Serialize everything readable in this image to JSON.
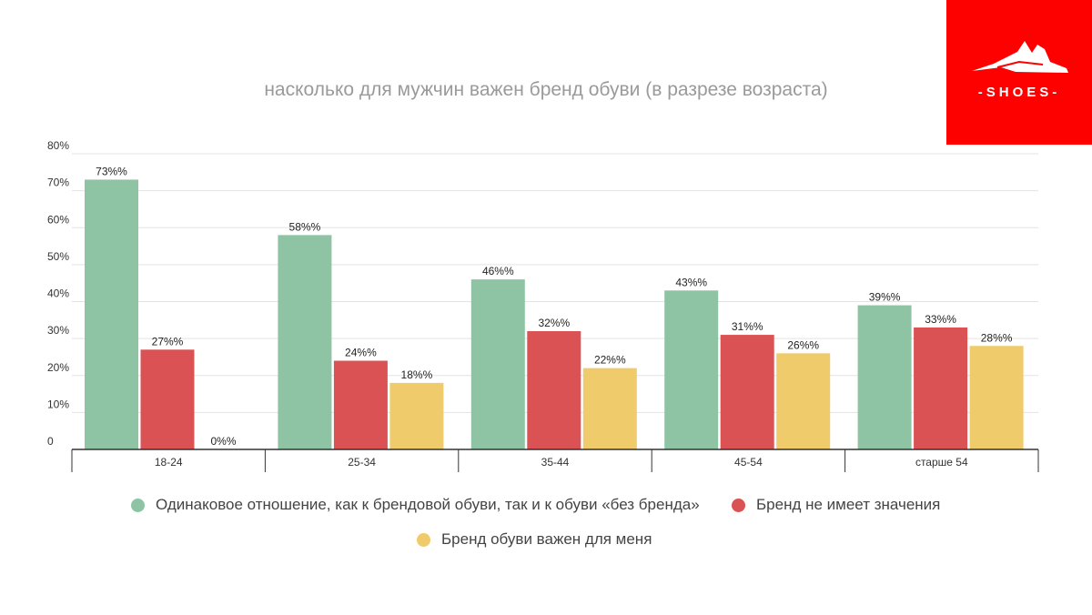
{
  "logo": {
    "text": "-SHOES-"
  },
  "chart_data": {
    "type": "bar",
    "title": "насколько для мужчин важен бренд обуви (в разрезе возраста)",
    "categories": [
      "18-24",
      "25-34",
      "35-44",
      "45-54",
      "старше 54"
    ],
    "series": [
      {
        "name": "Одинаковое отношение, как к брендовой обуви, так и к обуви «без бренда»",
        "color": "#8ec4a4",
        "values": [
          73,
          58,
          46,
          43,
          39
        ],
        "labels": [
          "73%%",
          "58%%",
          "46%%",
          "43%%",
          "39%%"
        ]
      },
      {
        "name": "Бренд не имеет значения",
        "color": "#db5254",
        "values": [
          27,
          24,
          32,
          31,
          33
        ],
        "labels": [
          "27%%",
          "24%%",
          "32%%",
          "31%%",
          "33%%"
        ]
      },
      {
        "name": "Бренд обуви важен для меня",
        "color": "#f0cb6c",
        "values": [
          0,
          18,
          22,
          26,
          28
        ],
        "labels": [
          "0%%",
          "18%%",
          "22%%",
          "26%%",
          "28%%"
        ]
      }
    ],
    "yticks": [
      "0",
      "10%",
      "20%",
      "30%",
      "40%",
      "50%",
      "60%",
      "70%",
      "80%"
    ],
    "ylim": [
      0,
      80
    ],
    "grid": true,
    "legend_position": "bottom"
  }
}
